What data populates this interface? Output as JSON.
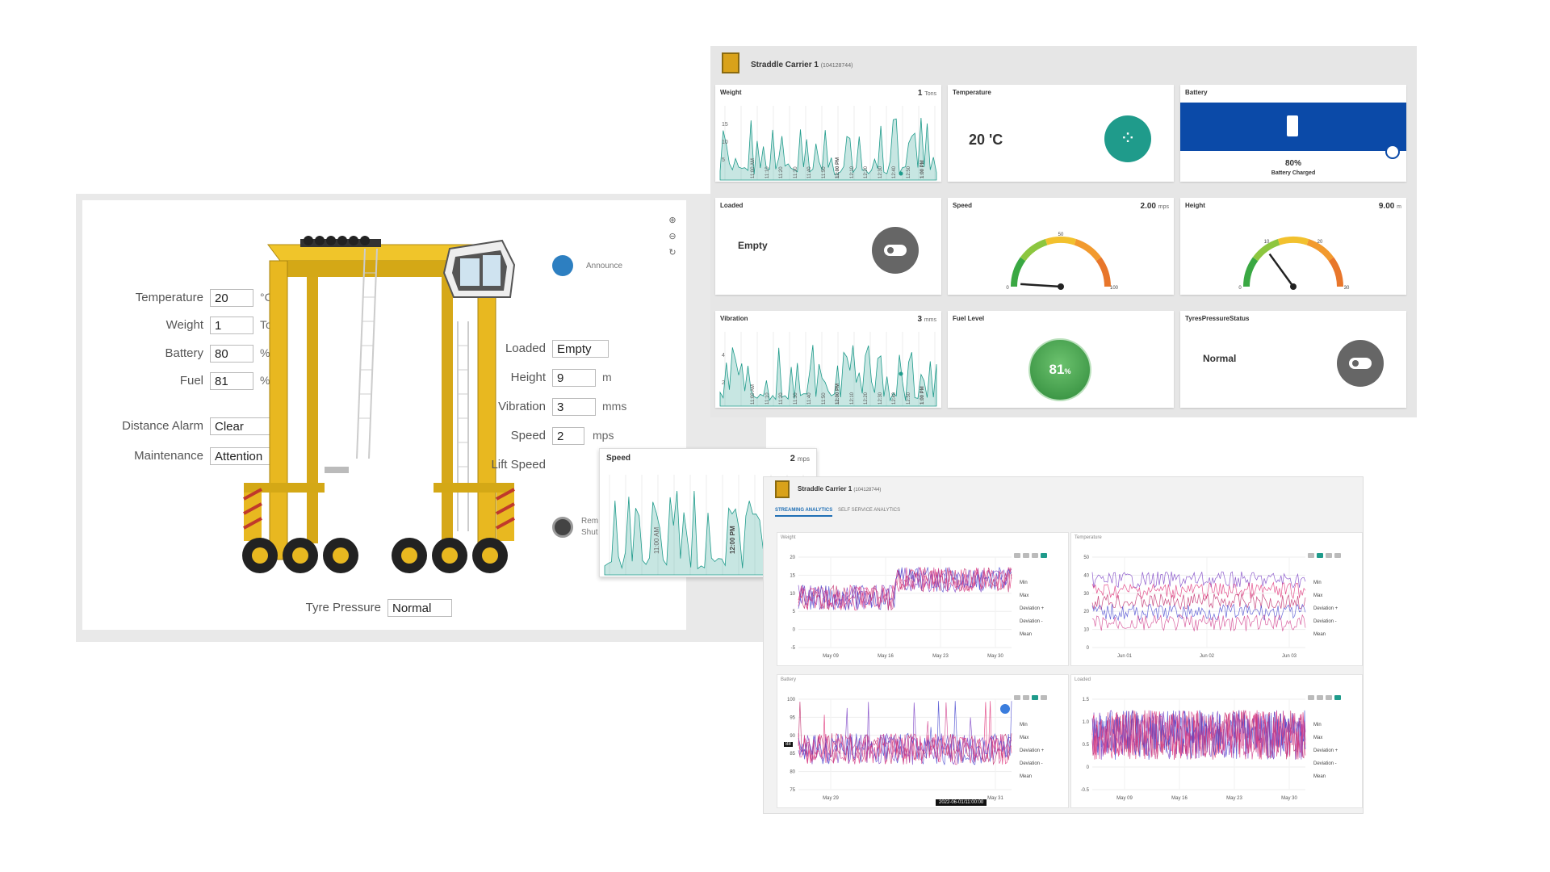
{
  "left_panel": {
    "fields": [
      {
        "label": "Temperature",
        "value": "20",
        "unit": "°C"
      },
      {
        "label": "Weight",
        "value": "1",
        "unit": "Tons"
      },
      {
        "label": "Battery",
        "value": "80",
        "unit": "%"
      },
      {
        "label": "Fuel",
        "value": "81",
        "unit": "%"
      },
      {
        "label": "Distance Alarm",
        "value": "Clear",
        "unit": ""
      },
      {
        "label": "Maintenance",
        "value": "Attention",
        "unit": ""
      }
    ],
    "right_fields": [
      {
        "label": "Loaded",
        "value": "Empty",
        "unit": ""
      },
      {
        "label": "Height",
        "value": "9",
        "unit": "m"
      },
      {
        "label": "Vibration",
        "value": "3",
        "unit": "mms"
      },
      {
        "label": "Speed",
        "value": "2",
        "unit": "mps"
      },
      {
        "label": "Lift Speed",
        "value": "",
        "unit": ""
      }
    ],
    "tyre_pressure": {
      "label": "Tyre Pressure",
      "value": "Normal"
    },
    "announce_label": "Announce",
    "remote_label_1": "Rem",
    "remote_label_2": "Shut"
  },
  "dashboard": {
    "title": "Straddle Carrier 1",
    "id": "(104128744)",
    "weight": {
      "title": "Weight",
      "value": "1",
      "unit": "Tons",
      "yticks": [
        "15",
        "10",
        "5"
      ],
      "xticks": [
        "11:00 AM",
        "11:10",
        "11:20",
        "11:30",
        "11:40",
        "11:50",
        "12:00 PM",
        "12:10",
        "12:20",
        "12:30",
        "12:40",
        "12:50",
        "1:00 PM"
      ]
    },
    "temperature": {
      "title": "Temperature",
      "value": "20 'C"
    },
    "battery": {
      "title": "Battery",
      "value": "80%",
      "caption": "Battery Charged",
      "level": 0.8,
      "color": "#0b4aa8"
    },
    "loaded": {
      "title": "Loaded",
      "value": "Empty"
    },
    "speed": {
      "title": "Speed",
      "value": "2.00",
      "unit": "mps",
      "min": "0",
      "mid": "50",
      "max": "100",
      "reading": 2
    },
    "height": {
      "title": "Height",
      "value": "9.00",
      "unit": "m",
      "min": "0",
      "t1": "10",
      "t2": "20",
      "max": "30",
      "reading": 9
    },
    "vibration": {
      "title": "Vibration",
      "value": "3",
      "unit": "mms",
      "yticks": [
        "4",
        "2"
      ],
      "xticks": [
        "11:00 AM",
        "11:10",
        "11:20",
        "11:30",
        "11:40",
        "11:50",
        "12:00 PM",
        "12:10",
        "12:20",
        "12:30",
        "12:40",
        "12:50",
        "1:00 PM"
      ]
    },
    "fuel": {
      "title": "Fuel Level",
      "value": "81",
      "unit": "%"
    },
    "tyres": {
      "title": "TyresPressureStatus",
      "value": "Normal"
    }
  },
  "speed_popup": {
    "title": "Speed",
    "value": "2",
    "unit": "mps",
    "xticks": [
      "11:00 AM",
      "12:00 PM"
    ]
  },
  "analytics": {
    "title": "Straddle Carrier 1",
    "id": "(104128744)",
    "tabs": [
      "STREAMING ANALYTICS",
      "SELF SERVICE ANALYTICS"
    ],
    "legend": [
      "Min",
      "Max",
      "Deviation +",
      "Deviation -",
      "Mean"
    ],
    "charts": [
      {
        "title": "Weight",
        "yticks": [
          "20",
          "15",
          "10",
          "5",
          "0",
          "-5"
        ],
        "xticks": [
          "May 09",
          "May 16",
          "May 23",
          "May 30"
        ]
      },
      {
        "title": "Temperature",
        "yticks": [
          "50",
          "40",
          "30",
          "20",
          "10",
          "0"
        ],
        "xticks": [
          "Jun 01",
          "Jun 02",
          "Jun 03"
        ]
      },
      {
        "title": "Battery",
        "yticks": [
          "100",
          "95",
          "90",
          "85",
          "80",
          "75"
        ],
        "xticks": [
          "May 29",
          "May 31"
        ],
        "cursor_label": "2022-06-01/11:00:00",
        "y_marker": "88"
      },
      {
        "title": "Loaded",
        "yticks": [
          "1.5",
          "1.0",
          "0.5",
          "0",
          "-0.5"
        ],
        "xticks": [
          "May 09",
          "May 16",
          "May 23",
          "May 30"
        ]
      }
    ]
  },
  "colors": {
    "teal": "#1f9b8b",
    "navy": "#0b4aa8",
    "crane_yellow": "#e8b820",
    "fuel_green": "#3fa34d"
  }
}
